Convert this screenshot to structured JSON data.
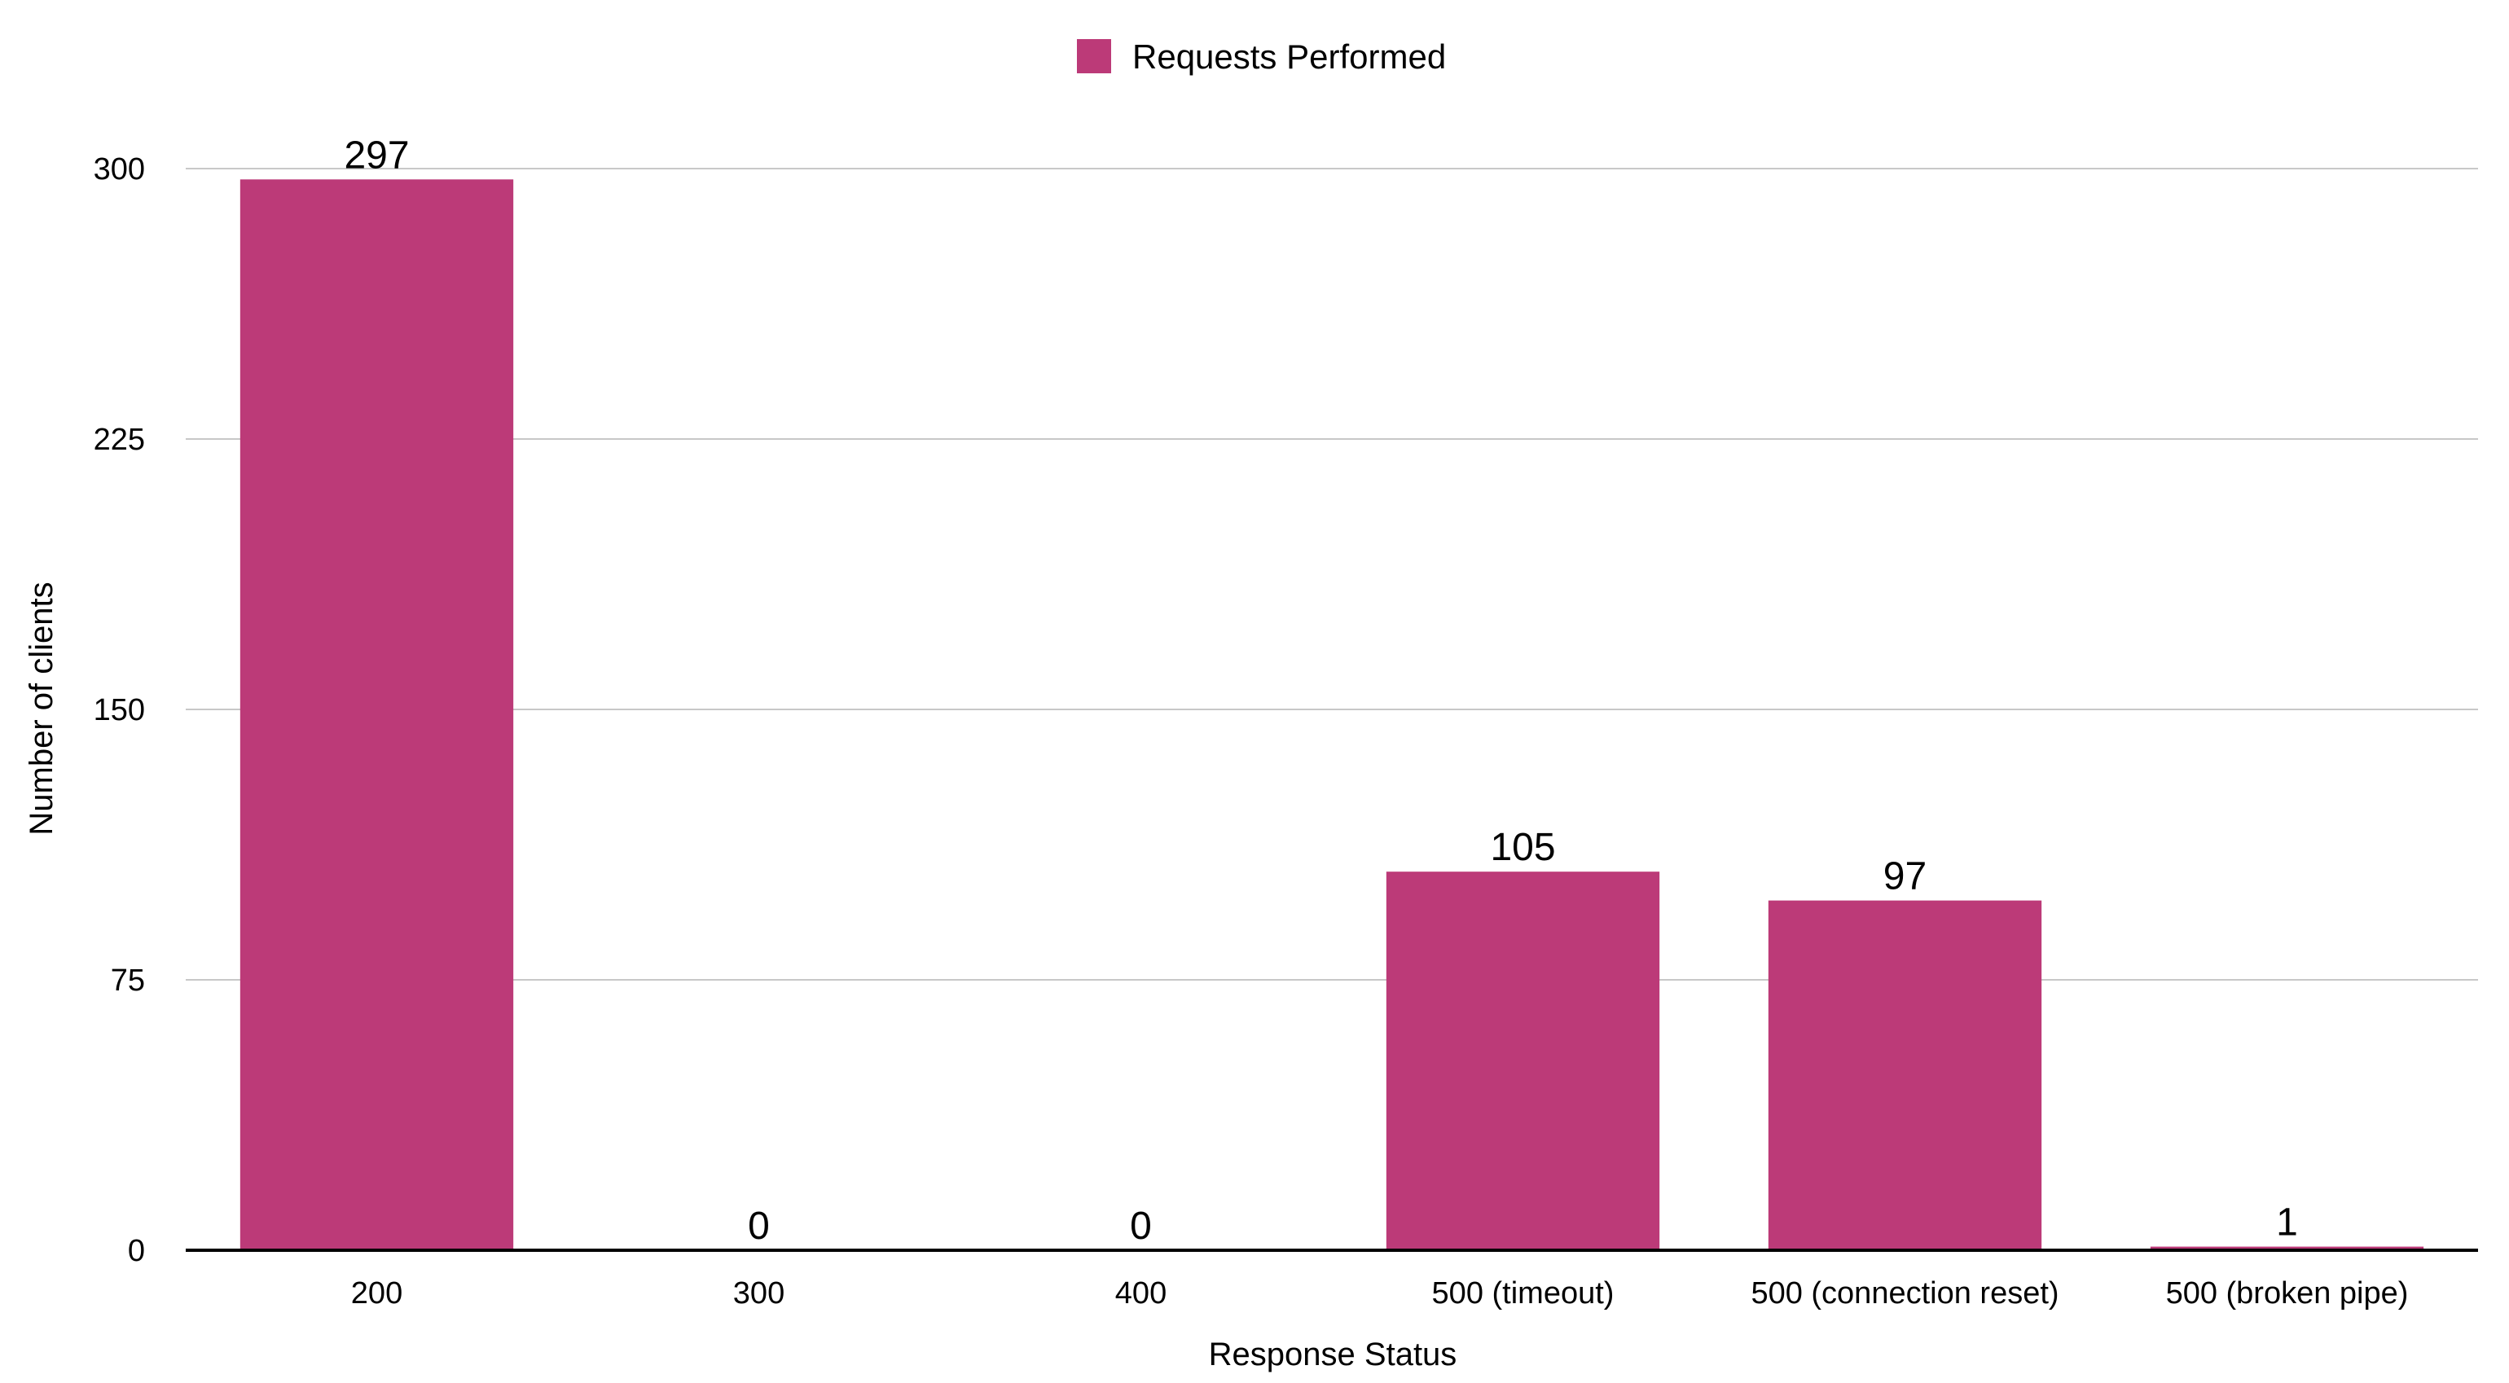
{
  "chart_data": {
    "type": "bar",
    "categories": [
      "200",
      "300",
      "400",
      "500 (timeout)",
      "500 (connection reset)",
      "500 (broken pipe)"
    ],
    "series": [
      {
        "name": "Requests Performed",
        "values": [
          297,
          0,
          0,
          105,
          97,
          1
        ],
        "color": "#bc3a78"
      }
    ],
    "data_labels": [
      "297",
      "0",
      "0",
      "105",
      "97",
      "1"
    ],
    "xlabel": "Response Status",
    "ylabel": "Number of clients",
    "ylim": [
      0,
      300
    ],
    "yticks": [
      0,
      75,
      150,
      225,
      300
    ],
    "ytick_labels": [
      "0",
      "75",
      "150",
      "225",
      "300"
    ],
    "grid": true,
    "legend_position": "top-center"
  }
}
